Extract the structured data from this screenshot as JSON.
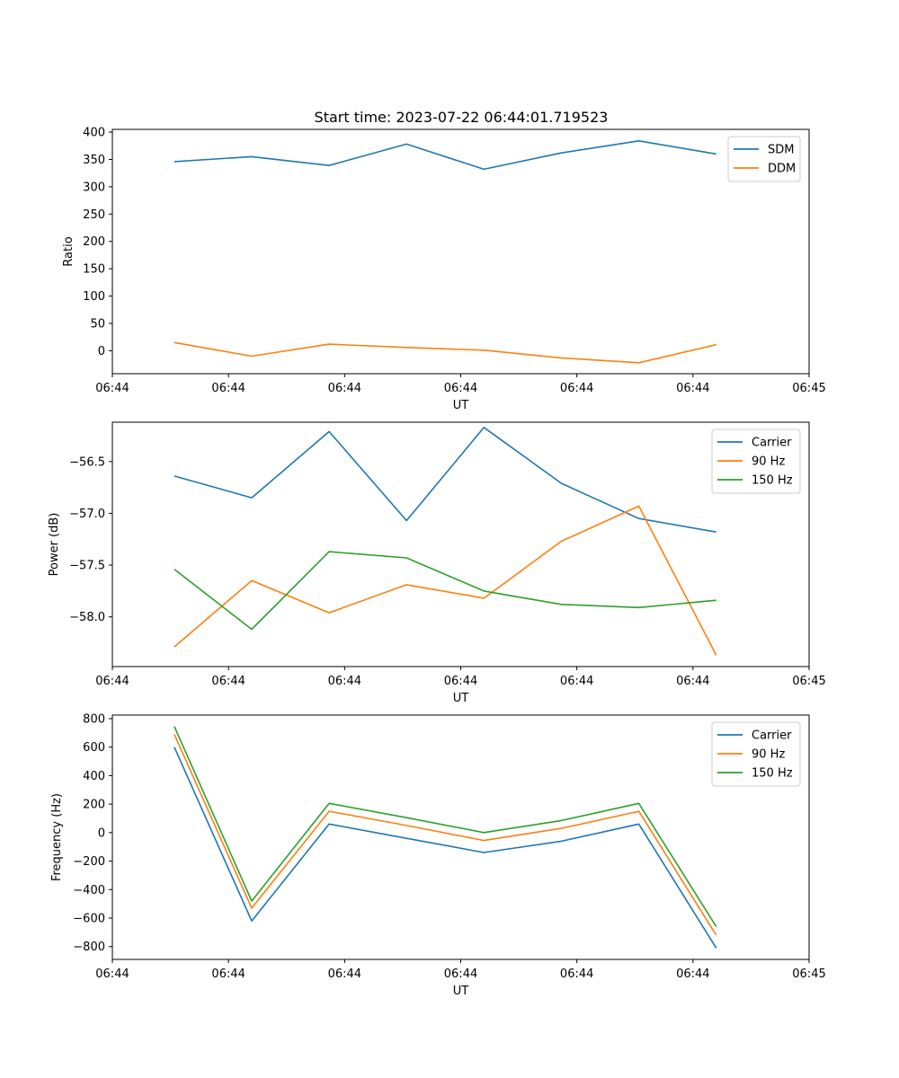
{
  "figure_title": "Start time: 2023-07-22 06:44:01.719523",
  "chart_data": [
    {
      "type": "line",
      "title": "Start time: 2023-07-22 06:44:01.719523",
      "xlabel": "UT",
      "ylabel": "Ratio",
      "x": [
        1,
        2,
        3,
        4,
        5,
        6,
        7,
        8
      ],
      "xlim": [
        0.2,
        9.2
      ],
      "x_ticks": [
        0.2,
        1.7,
        3.2,
        4.7,
        6.2,
        7.7,
        9.2
      ],
      "x_tick_labels": [
        "06:44",
        "06:44",
        "06:44",
        "06:44",
        "06:44",
        "06:44",
        "06:45"
      ],
      "ylim": [
        -42,
        405
      ],
      "y_ticks": [
        0,
        50,
        100,
        150,
        200,
        250,
        300,
        350,
        400
      ],
      "y_tick_labels": [
        "0",
        "50",
        "100",
        "150",
        "200",
        "250",
        "300",
        "350",
        "400"
      ],
      "legend_position": "top-right",
      "series": [
        {
          "name": "SDM",
          "color": "#1f77b4",
          "values": [
            346,
            355,
            339,
            378,
            332,
            362,
            384,
            360
          ]
        },
        {
          "name": "DDM",
          "color": "#ff7f0e",
          "values": [
            15,
            -10,
            12,
            6,
            1,
            -13,
            -22,
            11
          ]
        }
      ]
    },
    {
      "type": "line",
      "xlabel": "UT",
      "ylabel": "Power (dB)",
      "x": [
        1,
        2,
        3,
        4,
        5,
        6,
        7,
        8
      ],
      "xlim": [
        0.2,
        9.2
      ],
      "x_ticks": [
        0.2,
        1.7,
        3.2,
        4.7,
        6.2,
        7.7,
        9.2
      ],
      "x_tick_labels": [
        "06:44",
        "06:44",
        "06:44",
        "06:44",
        "06:44",
        "06:44",
        "06:45"
      ],
      "ylim": [
        -58.48,
        -56.12
      ],
      "y_ticks": [
        -58.0,
        -57.5,
        -57.0,
        -56.5
      ],
      "y_tick_labels": [
        "−58.0",
        "−57.5",
        "−57.0",
        "−56.5"
      ],
      "legend_position": "top-right",
      "series": [
        {
          "name": "Carrier",
          "color": "#1f77b4",
          "values": [
            -56.64,
            -56.85,
            -56.21,
            -57.07,
            -56.17,
            -56.71,
            -57.05,
            -57.18
          ]
        },
        {
          "name": "90 Hz",
          "color": "#ff7f0e",
          "values": [
            -58.29,
            -57.65,
            -57.96,
            -57.69,
            -57.82,
            -57.27,
            -56.93,
            -58.37
          ]
        },
        {
          "name": "150 Hz",
          "color": "#2ca02c",
          "values": [
            -57.54,
            -58.12,
            -57.37,
            -57.43,
            -57.75,
            -57.88,
            -57.91,
            -57.84
          ]
        }
      ]
    },
    {
      "type": "line",
      "xlabel": "UT",
      "ylabel": "Frequency (Hz)",
      "x": [
        1,
        2,
        3,
        4,
        5,
        6,
        7,
        8
      ],
      "xlim": [
        0.2,
        9.2
      ],
      "x_ticks": [
        0.2,
        1.7,
        3.2,
        4.7,
        6.2,
        7.7,
        9.2
      ],
      "x_tick_labels": [
        "06:44",
        "06:44",
        "06:44",
        "06:44",
        "06:44",
        "06:44",
        "06:45"
      ],
      "ylim": [
        -890,
        825
      ],
      "y_ticks": [
        -800,
        -600,
        -400,
        -200,
        0,
        200,
        400,
        600,
        800
      ],
      "y_tick_labels": [
        "−800",
        "−600",
        "−400",
        "−200",
        "0",
        "200",
        "400",
        "600",
        "800"
      ],
      "legend_position": "top-right",
      "series": [
        {
          "name": "Carrier",
          "color": "#1f77b4",
          "values": [
            600,
            -620,
            60,
            -40,
            -140,
            -60,
            60,
            -810
          ]
        },
        {
          "name": "90 Hz",
          "color": "#ff7f0e",
          "values": [
            690,
            -530,
            150,
            50,
            -55,
            30,
            150,
            -720
          ]
        },
        {
          "name": "150 Hz",
          "color": "#2ca02c",
          "values": [
            745,
            -480,
            205,
            105,
            0,
            85,
            205,
            -660
          ]
        }
      ]
    }
  ]
}
